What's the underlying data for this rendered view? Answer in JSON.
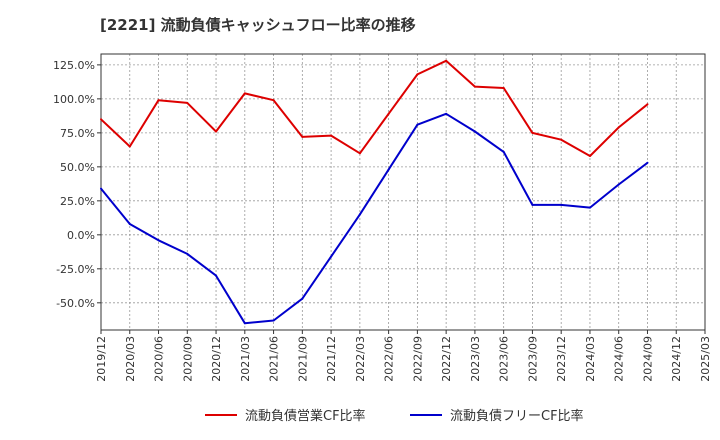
{
  "chart_data": {
    "type": "line",
    "title": "[2221]  流動負債キャッシュフロー比率の推移",
    "x": [
      "2019/12",
      "2020/03",
      "2020/06",
      "2020/09",
      "2020/12",
      "2021/03",
      "2021/06",
      "2021/09",
      "2021/12",
      "2022/03",
      "2022/06",
      "2022/09",
      "2022/12",
      "2023/03",
      "2023/06",
      "2023/09",
      "2023/12",
      "2024/03",
      "2024/06",
      "2024/09"
    ],
    "x_ticks": [
      "2019/12",
      "2020/03",
      "2020/06",
      "2020/09",
      "2020/12",
      "2021/03",
      "2021/06",
      "2021/09",
      "2021/12",
      "2022/03",
      "2022/06",
      "2022/09",
      "2022/12",
      "2023/03",
      "2023/06",
      "2023/09",
      "2023/12",
      "2024/03",
      "2024/06",
      "2024/09",
      "2024/12",
      "2025/03"
    ],
    "y_ticks": [
      "125.0%",
      "100.0%",
      "75.0%",
      "50.0%",
      "25.0%",
      "0.0%",
      "-25.0%",
      "-50.0%"
    ],
    "y_tick_values": [
      125,
      100,
      75,
      50,
      25,
      0,
      -25,
      -50
    ],
    "ylim": [
      -70,
      133
    ],
    "grid": true,
    "legend_position": "bottom",
    "series": [
      {
        "name": "流動負債営業CF比率",
        "color": "#dd0000",
        "values": [
          85,
          65,
          99,
          97,
          76,
          104,
          99,
          72,
          73,
          60,
          89,
          118,
          128,
          109,
          108,
          75,
          70,
          58,
          79,
          96
        ]
      },
      {
        "name": "流動負債フリーCF比率",
        "color": "#0000cc",
        "values": [
          34,
          8,
          -4,
          -14,
          -30,
          -65,
          -63,
          -47,
          -16,
          15,
          48,
          81,
          89,
          76,
          61,
          22,
          22,
          20,
          37,
          53
        ]
      }
    ]
  }
}
